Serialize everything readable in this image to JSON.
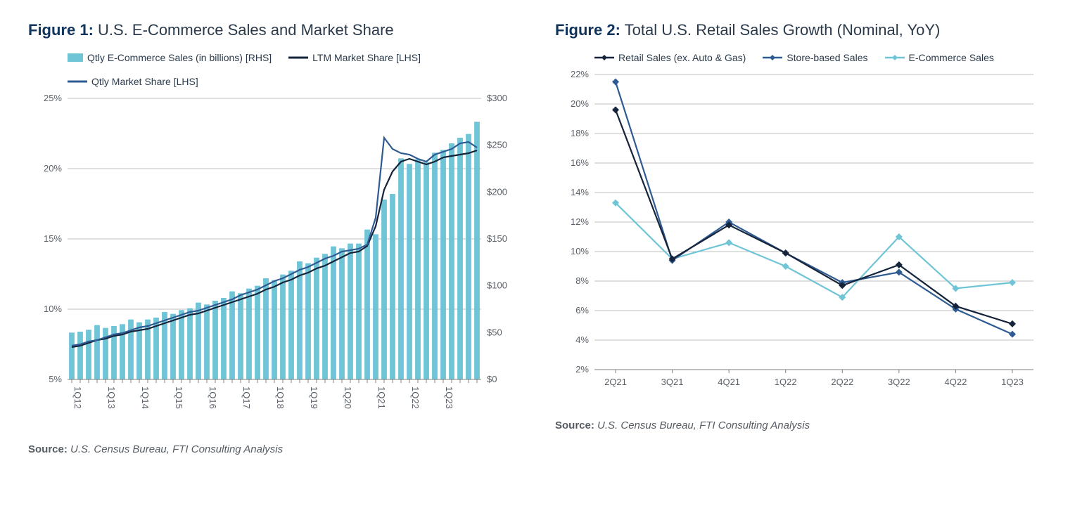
{
  "figure1": {
    "label": "Figure 1:",
    "title": "U.S. E-Commerce Sales and Market Share",
    "legend": {
      "bars": "Qtly E-Commerce Sales (in billions) [RHS]",
      "ltm": "LTM Market Share [LHS]",
      "qtly": "Qtly Market Share [LHS]"
    },
    "type": "bar+line",
    "colors": {
      "bar": "#6fc4d6",
      "ltm_line": "#16243b",
      "qtly_line": "#2f5b93",
      "grid": "#bfbfbf",
      "axis": "#808080",
      "tick_text": "#5a6068",
      "bg": "#ffffff"
    },
    "font_sizes": {
      "title": 22,
      "legend": 14,
      "tick": 13
    },
    "line_width": 2.2,
    "bar_gap_ratio": 0.35,
    "ylim_left": [
      5,
      25
    ],
    "ytick_left_step": 5,
    "ytick_left_labels": [
      "5%",
      "10%",
      "15%",
      "20%",
      "25%"
    ],
    "ylim_right": [
      0,
      300
    ],
    "ytick_right_step": 50,
    "ytick_right_labels": [
      "$0",
      "$50",
      "$100",
      "$150",
      "$200",
      "$250",
      "$300"
    ],
    "xtick_labels": [
      "1Q12",
      "",
      "",
      "",
      "1Q13",
      "",
      "",
      "",
      "1Q14",
      "",
      "",
      "",
      "1Q15",
      "",
      "",
      "",
      "1Q16",
      "",
      "",
      "",
      "1Q17",
      "",
      "",
      "",
      "1Q18",
      "",
      "",
      "",
      "1Q19",
      "",
      "",
      "",
      "1Q20",
      "",
      "",
      "",
      "1Q21",
      "",
      "",
      "",
      "1Q22",
      "",
      "",
      "",
      "1Q23"
    ],
    "bars": [
      50,
      51,
      53,
      58,
      55,
      57,
      59,
      64,
      61,
      64,
      66,
      72,
      70,
      74,
      76,
      82,
      80,
      84,
      87,
      94,
      92,
      97,
      100,
      108,
      106,
      112,
      116,
      126,
      124,
      130,
      134,
      142,
      140,
      145,
      145,
      160,
      155,
      192,
      198,
      236,
      230,
      235,
      232,
      242,
      245,
      252,
      258,
      262,
      275
    ],
    "ltm": [
      7.3,
      7.4,
      7.6,
      7.8,
      7.9,
      8.1,
      8.2,
      8.4,
      8.5,
      8.6,
      8.8,
      9.0,
      9.2,
      9.4,
      9.6,
      9.7,
      9.9,
      10.1,
      10.3,
      10.5,
      10.7,
      10.9,
      11.1,
      11.4,
      11.6,
      11.9,
      12.1,
      12.4,
      12.6,
      12.9,
      13.1,
      13.4,
      13.7,
      14.0,
      14.1,
      14.5,
      15.9,
      18.5,
      19.8,
      20.5,
      20.7,
      20.5,
      20.3,
      20.5,
      20.8,
      20.9,
      21.0,
      21.1,
      21.3
    ],
    "qtly": [
      7.4,
      7.5,
      7.7,
      7.8,
      8.0,
      8.2,
      8.3,
      8.5,
      8.7,
      8.8,
      9.0,
      9.2,
      9.4,
      9.6,
      9.8,
      9.9,
      10.1,
      10.3,
      10.5,
      10.7,
      11.0,
      11.2,
      11.4,
      11.7,
      12.0,
      12.2,
      12.5,
      12.8,
      13.0,
      13.3,
      13.6,
      13.8,
      14.1,
      14.2,
      14.3,
      14.6,
      16.5,
      22.2,
      21.4,
      21.1,
      21.0,
      20.7,
      20.5,
      21.0,
      21.2,
      21.4,
      21.8,
      21.9,
      21.5
    ],
    "source_label": "Source:",
    "source_body": "U.S. Census Bureau, FTI Consulting Analysis"
  },
  "figure2": {
    "label": "Figure 2:",
    "title": "Total U.S. Retail Sales Growth (Nominal, YoY)",
    "legend": {
      "retail": "Retail Sales (ex. Auto & Gas)",
      "store": "Store-based Sales",
      "ecom": "E-Commerce Sales"
    },
    "type": "line",
    "colors": {
      "retail": "#16243b",
      "store": "#2f5b93",
      "ecom": "#6fc4d6",
      "grid": "#bfbfbf",
      "axis": "#808080",
      "tick_text": "#5a6068",
      "bg": "#ffffff"
    },
    "font_sizes": {
      "title": 22,
      "legend": 14,
      "tick": 13
    },
    "line_width": 2.2,
    "marker_size": 5,
    "ylim": [
      2,
      22
    ],
    "ytick_step": 2,
    "ytick_labels": [
      "2%",
      "4%",
      "6%",
      "8%",
      "10%",
      "12%",
      "14%",
      "16%",
      "18%",
      "20%",
      "22%"
    ],
    "x_labels": [
      "2Q21",
      "3Q21",
      "4Q21",
      "1Q22",
      "2Q22",
      "3Q22",
      "4Q22",
      "1Q23"
    ],
    "retail": [
      19.6,
      9.5,
      11.8,
      9.9,
      7.7,
      9.1,
      6.3,
      5.1
    ],
    "store": [
      21.5,
      9.4,
      12.0,
      9.9,
      7.9,
      8.6,
      6.1,
      4.4
    ],
    "ecom": [
      13.3,
      9.5,
      10.6,
      9.0,
      6.9,
      11.0,
      7.5,
      7.9
    ],
    "source_label": "Source:",
    "source_body": "U.S. Census Bureau, FTI Consulting Analysis"
  }
}
